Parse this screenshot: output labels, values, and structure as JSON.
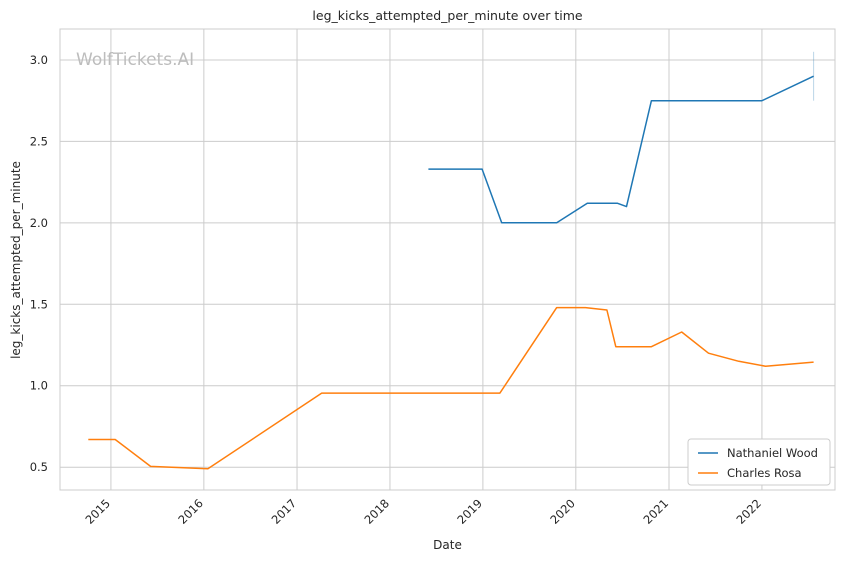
{
  "chart_data": {
    "type": "line",
    "title": "leg_kicks_attempted_per_minute over time",
    "xlabel": "Date",
    "ylabel": "leg_kicks_attempted_per_minute",
    "watermark": "WolfTickets.AI",
    "xlim": [
      "2014-06-15",
      "2022-10-15"
    ],
    "ylim": [
      0.36,
      3.19
    ],
    "x_ticks": [
      "2015-01-01",
      "2016-01-01",
      "2017-01-01",
      "2018-01-01",
      "2019-01-01",
      "2020-01-01",
      "2021-01-01",
      "2022-01-01"
    ],
    "x_tick_labels": [
      "2015",
      "2016",
      "2017",
      "2018",
      "2019",
      "2020",
      "2021",
      "2022"
    ],
    "y_ticks": [
      0.5,
      1.0,
      1.5,
      2.0,
      2.5,
      3.0
    ],
    "y_tick_labels": [
      "0.5",
      "1.0",
      "1.5",
      "2.0",
      "2.5",
      "3.0"
    ],
    "grid": true,
    "legend_position": "lower-right",
    "series": [
      {
        "name": "Nathaniel Wood",
        "color": "#1f77b4",
        "points": [
          [
            "2018-06-01",
            2.33
          ],
          [
            "2018-12-29",
            2.33
          ],
          [
            "2019-03-16",
            2.0
          ],
          [
            "2019-10-18",
            2.0
          ],
          [
            "2020-02-15",
            2.12
          ],
          [
            "2020-06-13",
            2.12
          ],
          [
            "2020-07-18",
            2.1
          ],
          [
            "2020-10-24",
            2.75
          ],
          [
            "2022-01-01",
            2.75
          ],
          [
            "2022-07-23",
            2.9
          ]
        ],
        "error_bar": {
          "x": "2022-07-23",
          "low": 2.75,
          "high": 3.05
        }
      },
      {
        "name": "Charles Rosa",
        "color": "#ff7f0e",
        "points": [
          [
            "2014-10-04",
            0.67
          ],
          [
            "2015-01-18",
            0.67
          ],
          [
            "2015-06-06",
            0.505
          ],
          [
            "2016-01-17",
            0.49
          ],
          [
            "2017-04-08",
            0.955
          ],
          [
            "2019-03-09",
            0.955
          ],
          [
            "2019-10-18",
            1.48
          ],
          [
            "2020-02-08",
            1.48
          ],
          [
            "2020-05-02",
            1.465
          ],
          [
            "2020-06-06",
            1.24
          ],
          [
            "2020-10-24",
            1.24
          ],
          [
            "2021-02-20",
            1.33
          ],
          [
            "2021-06-05",
            1.2
          ],
          [
            "2021-10-02",
            1.15
          ],
          [
            "2022-01-15",
            1.12
          ],
          [
            "2022-07-23",
            1.145
          ]
        ]
      }
    ]
  }
}
